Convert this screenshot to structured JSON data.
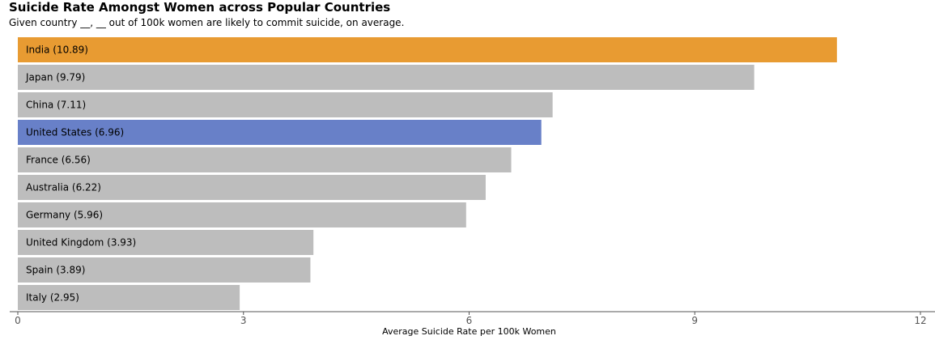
{
  "chart_data": {
    "type": "bar",
    "orientation": "horizontal",
    "title": "Suicide Rate Amongst Women across Popular Countries",
    "subtitle": "Given country __, __ out of 100k women are likely to commit suicide, on average.",
    "xlabel": "Average Suicide Rate per 100k Women",
    "ylabel": "",
    "xlim": [
      0,
      12
    ],
    "xticks": [
      "0",
      "3",
      "6",
      "9",
      "12"
    ],
    "grid": false,
    "categories": [
      "India",
      "Japan",
      "China",
      "United States",
      "France",
      "Australia",
      "Germany",
      "United Kingdom",
      "Spain",
      "Italy"
    ],
    "values": [
      10.89,
      9.79,
      7.11,
      6.96,
      6.56,
      6.22,
      5.96,
      3.93,
      3.89,
      2.95
    ],
    "bar_labels": [
      "India (10.89)",
      "Japan (9.79)",
      "China (7.11)",
      "United States (6.96)",
      "France (6.56)",
      "Australia (6.22)",
      "Germany (5.96)",
      "United Kingdom (3.93)",
      "Spain (3.89)",
      "Italy (2.95)"
    ],
    "colors": {
      "default": "#bdbdbd",
      "India": "#e89b32",
      "United States": "#6880c8"
    }
  }
}
